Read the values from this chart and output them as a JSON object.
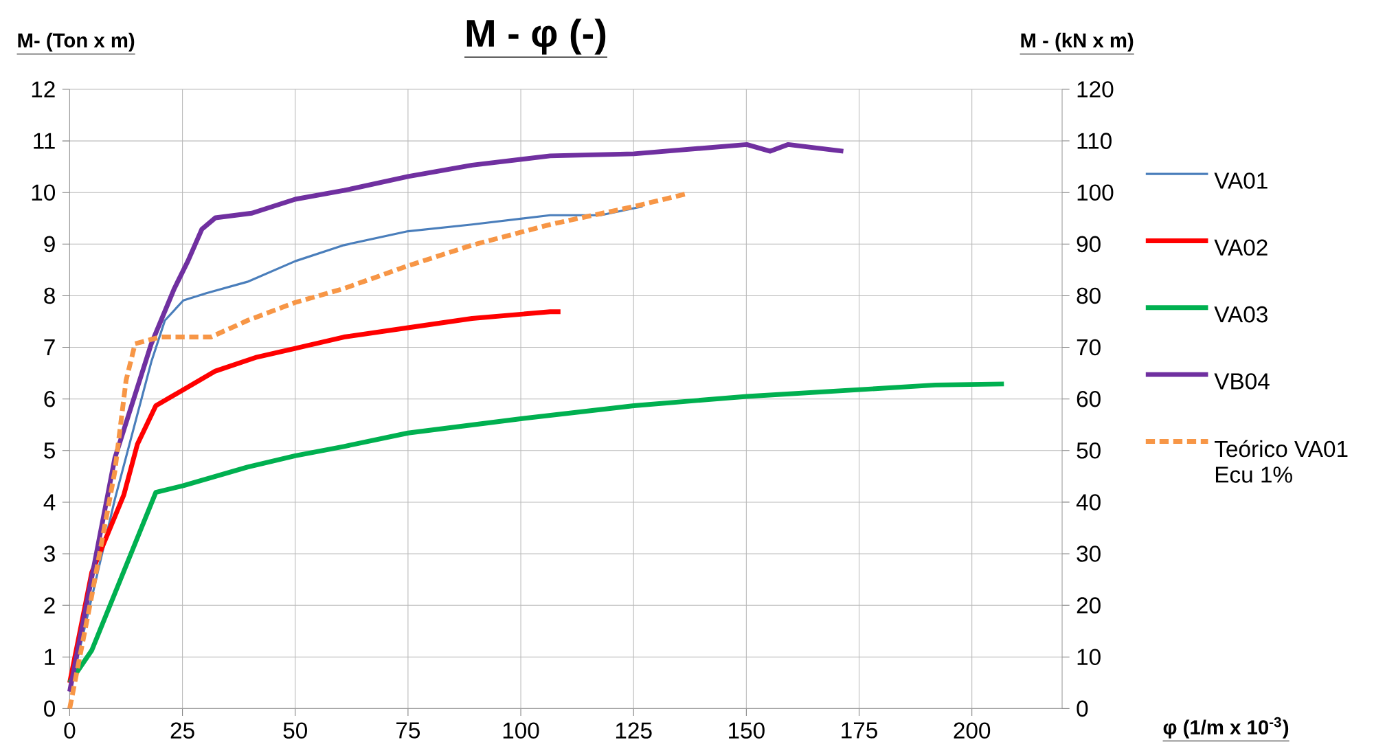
{
  "chart_data": {
    "type": "line",
    "title": "M - φ (-)",
    "xlabel": "φ (1/m x 10$^{-3}$)",
    "ylabel": "M- (Ton x m)",
    "y2label": "M - (kN x m)",
    "xlim": [
      0,
      220
    ],
    "xticks": [
      0,
      25,
      50,
      75,
      100,
      125,
      150,
      175,
      200
    ],
    "ylim": [
      0,
      12
    ],
    "yticks": [
      0,
      1,
      2,
      3,
      4,
      5,
      6,
      7,
      8,
      9,
      10,
      11,
      12
    ],
    "y2lim": [
      0,
      120
    ],
    "y2ticks": [
      0,
      10,
      20,
      30,
      40,
      50,
      60,
      70,
      80,
      90,
      100,
      110,
      120
    ],
    "grid": true,
    "legend": "right",
    "line_style": "solid",
    "series": [
      {
        "name": "VA01",
        "color": "#4a7ebb",
        "x": [
          0,
          10,
          18.1,
          21.1,
          25.2,
          30.3,
          39.4,
          50,
          60.8,
          75,
          89.2,
          106.5,
          117.7,
          127
        ],
        "values": [
          0.33,
          4.05,
          6.72,
          7.52,
          7.91,
          8.05,
          8.27,
          8.67,
          8.98,
          9.25,
          9.38,
          9.56,
          9.56,
          9.73
        ]
      },
      {
        "name": "VA02",
        "color": "#ff0000",
        "x": [
          0,
          4.9,
          12,
          15,
          19.1,
          25.2,
          32.3,
          41.5,
          50,
          60.8,
          75,
          89.2,
          106.5,
          108.8
        ],
        "values": [
          0.5,
          2.64,
          4.14,
          5.12,
          5.87,
          6.18,
          6.54,
          6.81,
          6.98,
          7.2,
          7.38,
          7.56,
          7.69,
          7.69
        ]
      },
      {
        "name": "VA03",
        "color": "#00b050",
        "x": [
          0,
          4.9,
          19.1,
          25.2,
          39.4,
          50,
          60.8,
          75,
          99.4,
          125.1,
          150.1,
          175.1,
          191.9,
          207.1
        ],
        "values": [
          0.5,
          1.13,
          4.19,
          4.32,
          4.68,
          4.9,
          5.08,
          5.34,
          5.61,
          5.87,
          6.05,
          6.18,
          6.27,
          6.29
        ]
      },
      {
        "name": "VB04",
        "color": "#7030a0",
        "x": [
          0,
          10,
          18.1,
          23.2,
          26.2,
          29.3,
          32.3,
          40.4,
          50,
          60.8,
          75,
          89.2,
          106.5,
          125.1,
          150.1,
          155.3,
          159.3,
          171.5
        ],
        "values": [
          0.33,
          4.85,
          7.07,
          8.14,
          8.67,
          9.29,
          9.51,
          9.6,
          9.87,
          10.04,
          10.31,
          10.53,
          10.71,
          10.75,
          10.93,
          10.8,
          10.93,
          10.8
        ]
      },
      {
        "name": "Teórico VA01 Ecu 1%",
        "color": "#f79646",
        "line_style": "dashed",
        "x": [
          0,
          4.9,
          10,
          12.5,
          14.5,
          20.1,
          31.3,
          39.4,
          50,
          60.8,
          75,
          89.2,
          106.5,
          125.1,
          137
        ],
        "values": [
          0,
          2.19,
          4.59,
          6.36,
          7.07,
          7.2,
          7.2,
          7.52,
          7.87,
          8.14,
          8.58,
          8.98,
          9.38,
          9.73,
          9.98
        ]
      }
    ]
  }
}
